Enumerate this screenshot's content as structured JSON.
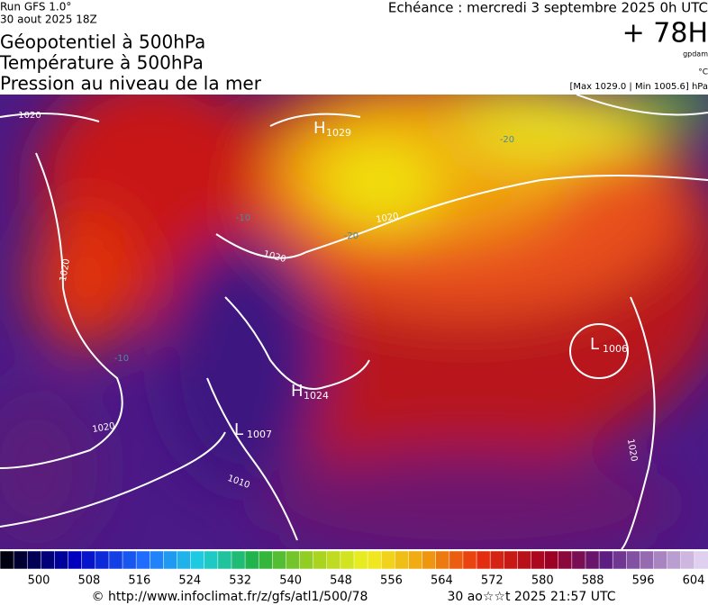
{
  "header": {
    "run": "Run GFS 1.0°",
    "run_date": "30 aout 2025 18Z",
    "titles": [
      "Géopotentiel à 500hPa",
      "Température à 500hPa",
      "Pression au niveau de la mer"
    ],
    "forecast": "Echéance : mercredi 3 septembre 2025 0h UTC",
    "lead": "+ 78H",
    "unit_geo": "gpdam",
    "unit_temp": "°C",
    "minmax": "[Max 1029.0 | Min 1005.6] hPa"
  },
  "map": {
    "centers": [
      {
        "type": "H",
        "value": 1029
      },
      {
        "type": "H",
        "value": 1024
      },
      {
        "type": "L",
        "value": 1007
      },
      {
        "type": "L",
        "value": 1006
      }
    ],
    "isobar_labels": [
      1020,
      1020,
      1020,
      1020,
      1020,
      1020,
      1010
    ],
    "temp_labels": [
      -20,
      -20,
      -10,
      -10
    ]
  },
  "legend": {
    "ticks": [
      500,
      508,
      516,
      524,
      532,
      540,
      548,
      556,
      564,
      572,
      580,
      588,
      596,
      604
    ]
  },
  "footer": {
    "url": "© http://www.infoclimat.fr/z/gfs/atl1/500/78",
    "time": "30 ao☆☆t 2025 21:57 UTC"
  }
}
